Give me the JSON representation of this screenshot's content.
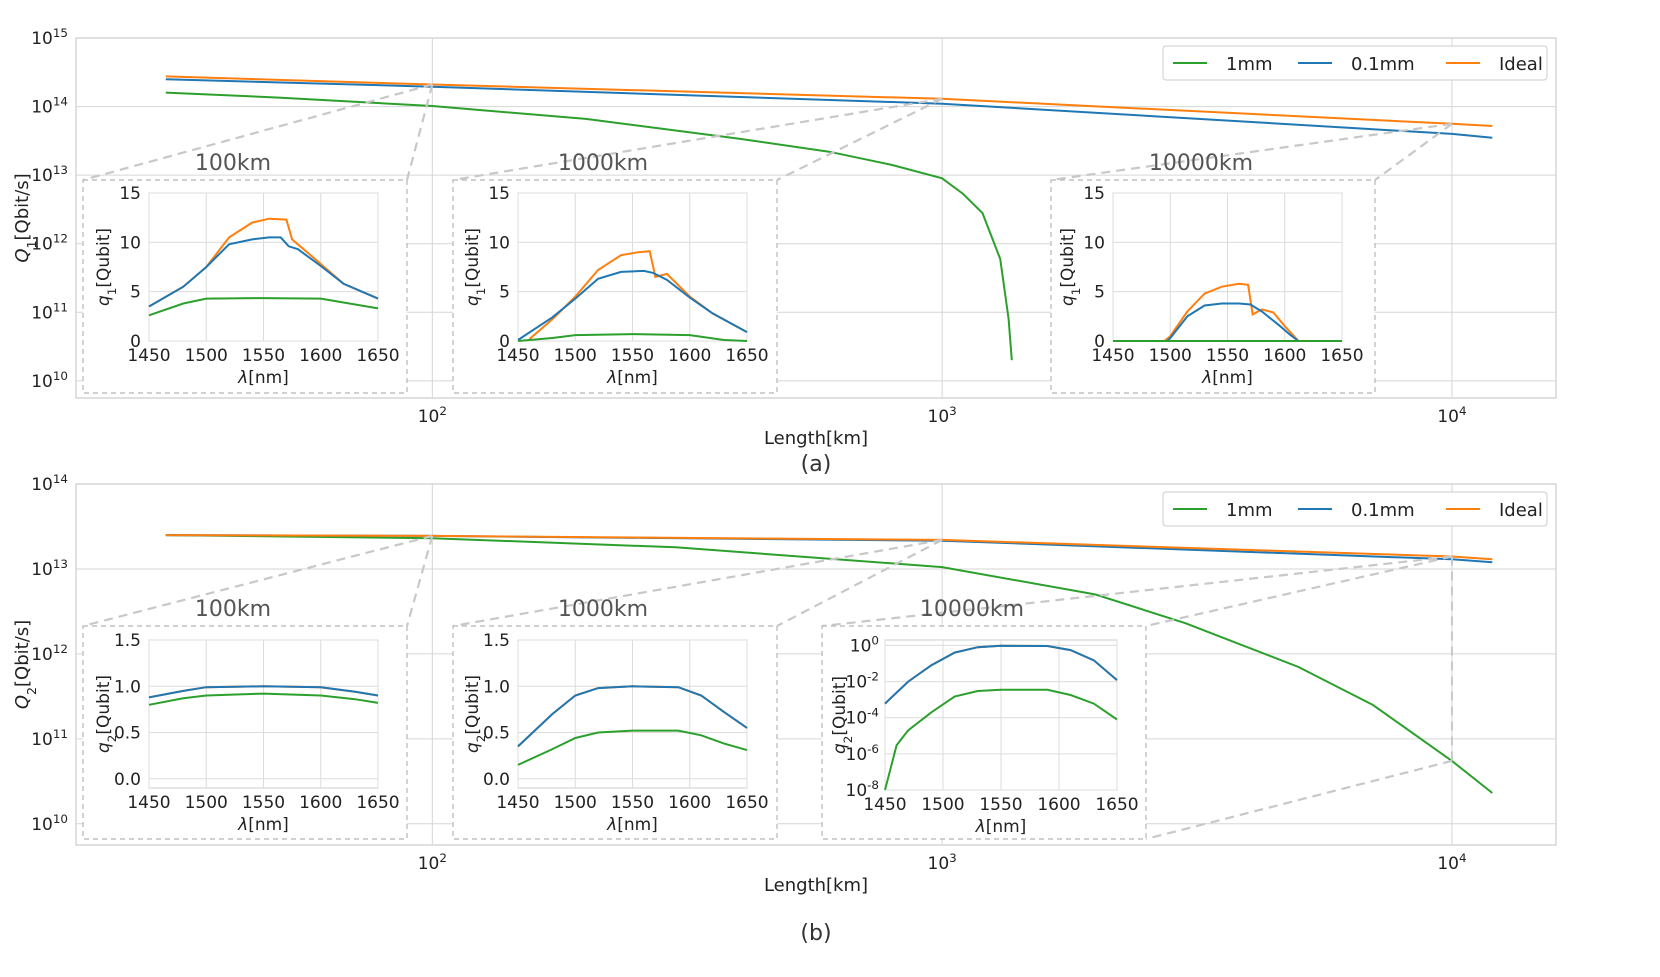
{
  "chart_data": [
    {
      "type": "line",
      "panel_caption": "(a)",
      "xlabel": "Length[km]",
      "ylabel": "Q_1[Qbit/s]",
      "xscale": "log",
      "yscale": "log",
      "xticks": [
        {
          "base": "10",
          "exp": "2"
        },
        {
          "base": "10",
          "exp": "3"
        },
        {
          "base": "10",
          "exp": "4"
        }
      ],
      "yticks": [
        {
          "base": "10",
          "exp": "10"
        },
        {
          "base": "10",
          "exp": "11"
        },
        {
          "base": "10",
          "exp": "12"
        },
        {
          "base": "10",
          "exp": "13"
        },
        {
          "base": "10",
          "exp": "14"
        },
        {
          "base": "10",
          "exp": "15"
        }
      ],
      "xlim": [
        20,
        16000
      ],
      "ylim_exp": [
        9.75,
        15.0
      ],
      "grid": true,
      "legend": {
        "placement": "top-right",
        "entries": [
          "1mm",
          "0.1mm",
          "Ideal"
        ]
      },
      "series": [
        {
          "name": "1mm",
          "color": "#2ca02c",
          "x": [
            30,
            50,
            100,
            200,
            400,
            600,
            800,
            1000,
            1100,
            1200,
            1300,
            1350,
            1370
          ],
          "y": [
            160000000000000.0,
            135000000000000.0,
            102000000000000.0,
            66000000000000.0,
            34000000000000.0,
            22000000000000.0,
            14000000000000.0,
            9000000000000.0,
            5300000000000.0,
            2800000000000.0,
            600000000000.0,
            80000000000.0,
            20000000000.0
          ]
        },
        {
          "name": "0.1mm",
          "color": "#1f77b4",
          "x": [
            30,
            100,
            1000,
            10000,
            12000
          ],
          "y": [
            250000000000000.0,
            195000000000000.0,
            110000000000000.0,
            40000000000000.0,
            35000000000000.0
          ]
        },
        {
          "name": "Ideal",
          "color": "#ff7f0e",
          "x": [
            30,
            100,
            1000,
            10000,
            12000
          ],
          "y": [
            275000000000000.0,
            210000000000000.0,
            130000000000000.0,
            56000000000000.0,
            52000000000000.0
          ]
        }
      ],
      "insets": [
        {
          "title": "100km",
          "length_km": 100,
          "xlabel": "λ[nm]",
          "ylabel": "q_1[Qubit]",
          "xticks": [
            "1450",
            "1500",
            "1550",
            "1600",
            "1650"
          ],
          "xlim": [
            1450,
            1650
          ],
          "yticks": [
            "0",
            "5",
            "10",
            "15"
          ],
          "ylim": [
            0,
            15
          ],
          "yscale": "linear",
          "series": [
            {
              "name": "Ideal",
              "x": [
                1450,
                1480,
                1500,
                1520,
                1540,
                1555,
                1570,
                1575,
                1580,
                1600,
                1620,
                1650
              ],
              "y": [
                3.5,
                5.5,
                7.5,
                10.5,
                12.0,
                12.4,
                12.3,
                10.3,
                9.8,
                7.8,
                5.8,
                4.3
              ]
            },
            {
              "name": "0.1mm",
              "x": [
                1450,
                1480,
                1500,
                1520,
                1540,
                1555,
                1565,
                1572,
                1580,
                1600,
                1620,
                1650
              ],
              "y": [
                3.5,
                5.5,
                7.5,
                9.8,
                10.3,
                10.5,
                10.5,
                9.6,
                9.3,
                7.6,
                5.8,
                4.3
              ]
            },
            {
              "name": "1mm",
              "x": [
                1450,
                1480,
                1500,
                1550,
                1600,
                1650
              ],
              "y": [
                2.6,
                3.8,
                4.3,
                4.35,
                4.3,
                3.3
              ]
            }
          ]
        },
        {
          "title": "1000km",
          "length_km": 1000,
          "xlabel": "λ[nm]",
          "ylabel": "q_1[Qubit]",
          "xticks": [
            "1450",
            "1500",
            "1550",
            "1600",
            "1650"
          ],
          "xlim": [
            1450,
            1650
          ],
          "yticks": [
            "0",
            "5",
            "10",
            "15"
          ],
          "ylim": [
            0,
            15
          ],
          "yscale": "linear",
          "series": [
            {
              "name": "Ideal",
              "x": [
                1460,
                1480,
                1500,
                1520,
                1540,
                1555,
                1565,
                1570,
                1580,
                1600,
                1620,
                1650
              ],
              "y": [
                0.2,
                2.2,
                4.5,
                7.2,
                8.7,
                9.0,
                9.1,
                6.5,
                6.8,
                4.5,
                2.8,
                0.9
              ]
            },
            {
              "name": "0.1mm",
              "x": [
                1450,
                1480,
                1500,
                1520,
                1540,
                1560,
                1568,
                1580,
                1600,
                1620,
                1650
              ],
              "y": [
                0.1,
                2.4,
                4.3,
                6.3,
                7.0,
                7.1,
                6.9,
                6.2,
                4.4,
                2.8,
                0.9
              ]
            },
            {
              "name": "1mm",
              "x": [
                1450,
                1480,
                1500,
                1550,
                1600,
                1630,
                1650
              ],
              "y": [
                0,
                0.3,
                0.6,
                0.7,
                0.6,
                0.1,
                0
              ]
            }
          ]
        },
        {
          "title": "10000km",
          "length_km": 10000,
          "xlabel": "λ[nm]",
          "ylabel": "q_1[Qubit]",
          "xticks": [
            "1450",
            "1500",
            "1550",
            "1600",
            "1650"
          ],
          "xlim": [
            1450,
            1650
          ],
          "yticks": [
            "0",
            "5",
            "10",
            "15"
          ],
          "ylim": [
            0,
            15
          ],
          "yscale": "linear",
          "series": [
            {
              "name": "Ideal",
              "x": [
                1450,
                1495,
                1500,
                1515,
                1530,
                1545,
                1560,
                1568,
                1572,
                1580,
                1590,
                1600,
                1612,
                1650
              ],
              "y": [
                0,
                0,
                0.5,
                3.0,
                4.8,
                5.5,
                5.8,
                5.7,
                2.7,
                3.2,
                2.9,
                1.5,
                0,
                0
              ]
            },
            {
              "name": "0.1mm",
              "x": [
                1450,
                1497,
                1500,
                1515,
                1530,
                1545,
                1560,
                1570,
                1580,
                1595,
                1605,
                1612,
                1650
              ],
              "y": [
                0,
                0,
                0.3,
                2.5,
                3.6,
                3.8,
                3.8,
                3.7,
                3.0,
                1.6,
                0.6,
                0,
                0
              ]
            },
            {
              "name": "1mm",
              "x": [
                1450,
                1650
              ],
              "y": [
                0,
                0
              ]
            }
          ]
        }
      ]
    },
    {
      "type": "line",
      "panel_caption": "(b)",
      "xlabel": "Length[km]",
      "ylabel": "Q_2[Qbit/s]",
      "xscale": "log",
      "yscale": "log",
      "xticks": [
        {
          "base": "10",
          "exp": "2"
        },
        {
          "base": "10",
          "exp": "3"
        },
        {
          "base": "10",
          "exp": "4"
        }
      ],
      "yticks": [
        {
          "base": "10",
          "exp": "10"
        },
        {
          "base": "10",
          "exp": "11"
        },
        {
          "base": "10",
          "exp": "12"
        },
        {
          "base": "10",
          "exp": "13"
        },
        {
          "base": "10",
          "exp": "14"
        }
      ],
      "xlim": [
        20,
        16000
      ],
      "ylim_exp": [
        9.75,
        14.0
      ],
      "grid": true,
      "legend": {
        "placement": "top-right",
        "entries": [
          "1mm",
          "0.1mm",
          "Ideal"
        ]
      },
      "series": [
        {
          "name": "1mm",
          "color": "#2ca02c",
          "x": [
            30,
            100,
            300,
            1000,
            2000,
            3000,
            5000,
            7000,
            10000,
            12000
          ],
          "y": [
            25000000000000.0,
            23000000000000.0,
            18000000000000.0,
            10500000000000.0,
            5000000000000.0,
            2300000000000.0,
            700000000000.0,
            250000000000.0,
            55000000000.0,
            23000000000.0
          ]
        },
        {
          "name": "0.1mm",
          "color": "#1f77b4",
          "x": [
            30,
            100,
            1000,
            10000,
            12000
          ],
          "y": [
            25000000000000.0,
            24500000000000.0,
            21500000000000.0,
            13000000000000.0,
            12000000000000.0
          ]
        },
        {
          "name": "Ideal",
          "color": "#ff7f0e",
          "x": [
            30,
            100,
            1000,
            10000,
            12000
          ],
          "y": [
            25000000000000.0,
            24500000000000.0,
            22000000000000.0,
            14000000000000.0,
            13000000000000.0
          ]
        }
      ],
      "insets": [
        {
          "title": "100km",
          "length_km": 100,
          "xlabel": "λ[nm]",
          "ylabel": "q_2[Qubit]",
          "xticks": [
            "1450",
            "1500",
            "1550",
            "1600",
            "1650"
          ],
          "xlim": [
            1450,
            1650
          ],
          "yticks": [
            "0.0",
            "0.5",
            "1.0",
            "1.5"
          ],
          "ylim": [
            -0.1,
            1.5
          ],
          "yscale": "linear",
          "series": [
            {
              "name": "Ideal",
              "x": [
                1450,
                1480,
                1500,
                1550,
                1600,
                1630,
                1650
              ],
              "y": [
                0.88,
                0.95,
                0.99,
                1.0,
                0.99,
                0.94,
                0.9
              ]
            },
            {
              "name": "0.1mm",
              "x": [
                1450,
                1480,
                1500,
                1550,
                1600,
                1630,
                1650
              ],
              "y": [
                0.88,
                0.95,
                0.99,
                1.0,
                0.99,
                0.94,
                0.9
              ]
            },
            {
              "name": "1mm",
              "x": [
                1450,
                1480,
                1500,
                1550,
                1600,
                1630,
                1650
              ],
              "y": [
                0.8,
                0.87,
                0.9,
                0.92,
                0.9,
                0.86,
                0.82
              ]
            }
          ]
        },
        {
          "title": "1000km",
          "length_km": 1000,
          "xlabel": "λ[nm]",
          "ylabel": "q_2[Qubit]",
          "xticks": [
            "1450",
            "1500",
            "1550",
            "1600",
            "1650"
          ],
          "xlim": [
            1450,
            1650
          ],
          "yticks": [
            "0.0",
            "0.5",
            "1.0",
            "1.5"
          ],
          "ylim": [
            -0.1,
            1.5
          ],
          "yscale": "linear",
          "series": [
            {
              "name": "Ideal",
              "x": [
                1450,
                1480,
                1500,
                1520,
                1550,
                1590,
                1610,
                1630,
                1650
              ],
              "y": [
                0.35,
                0.7,
                0.9,
                0.98,
                1.0,
                0.99,
                0.9,
                0.72,
                0.55
              ]
            },
            {
              "name": "0.1mm",
              "x": [
                1450,
                1480,
                1500,
                1520,
                1550,
                1590,
                1610,
                1630,
                1650
              ],
              "y": [
                0.35,
                0.7,
                0.9,
                0.98,
                1.0,
                0.99,
                0.9,
                0.72,
                0.55
              ]
            },
            {
              "name": "1mm",
              "x": [
                1450,
                1480,
                1500,
                1520,
                1550,
                1590,
                1610,
                1630,
                1650
              ],
              "y": [
                0.15,
                0.32,
                0.44,
                0.5,
                0.52,
                0.52,
                0.47,
                0.38,
                0.31
              ]
            }
          ]
        },
        {
          "title": "10000km",
          "length_km": 10000,
          "xlabel": "λ[nm]",
          "ylabel": "q_2[Qubit]",
          "xticks": [
            "1450",
            "1500",
            "1550",
            "1600",
            "1650"
          ],
          "xlim": [
            1450,
            1650
          ],
          "yticks": [
            {
              "base": "10",
              "exp": "0"
            },
            {
              "base": "10",
              "exp": "-2"
            },
            {
              "base": "10",
              "exp": "-4"
            },
            {
              "base": "10",
              "exp": "-6"
            },
            {
              "base": "10",
              "exp": "-8"
            }
          ],
          "ylim_exp": [
            -8,
            0.3
          ],
          "yscale": "log",
          "series": [
            {
              "name": "Ideal",
              "x": [
                1450,
                1470,
                1490,
                1510,
                1530,
                1550,
                1590,
                1610,
                1630,
                1650
              ],
              "y": [
                0.0006,
                0.01,
                0.08,
                0.4,
                0.8,
                0.95,
                0.93,
                0.55,
                0.15,
                0.012
              ]
            },
            {
              "name": "0.1mm",
              "x": [
                1450,
                1470,
                1490,
                1510,
                1530,
                1550,
                1590,
                1610,
                1630,
                1650
              ],
              "y": [
                0.0006,
                0.01,
                0.08,
                0.4,
                0.8,
                0.95,
                0.93,
                0.55,
                0.15,
                0.012
              ]
            },
            {
              "name": "1mm",
              "x": [
                1450,
                1460,
                1470,
                1490,
                1510,
                1530,
                1550,
                1590,
                1610,
                1630,
                1650
              ],
              "y": [
                1e-08,
                3e-06,
                2e-05,
                0.0002,
                0.0015,
                0.003,
                0.0035,
                0.0035,
                0.0018,
                0.0006,
                8e-05
              ]
            }
          ]
        }
      ]
    }
  ]
}
